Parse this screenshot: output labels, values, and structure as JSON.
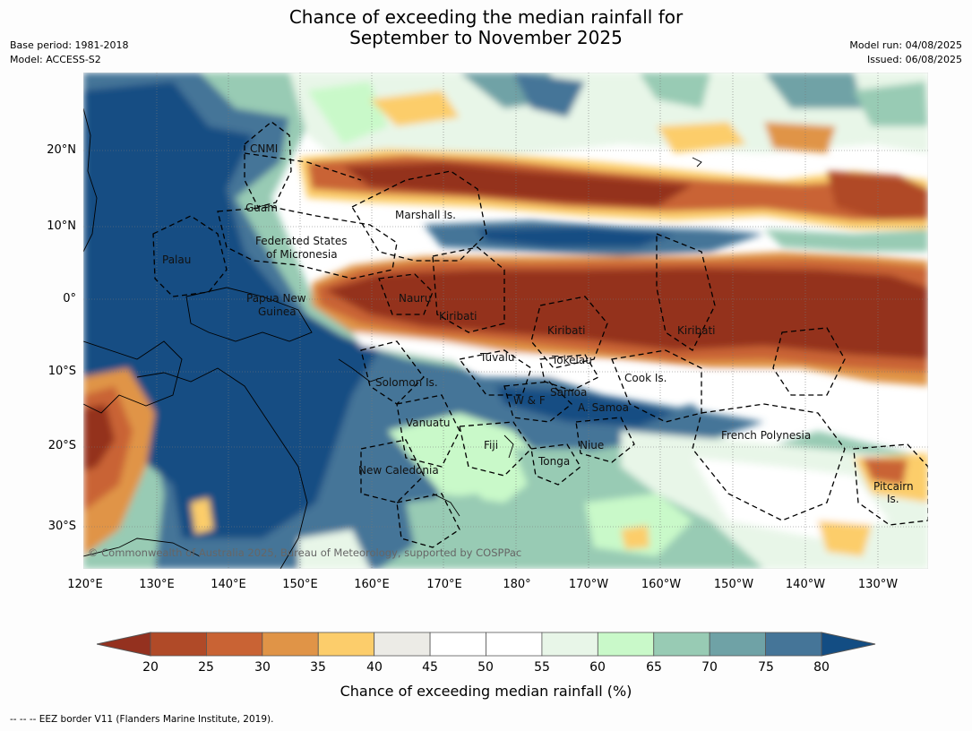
{
  "title_line1": "Chance of exceeding the median rainfall for",
  "title_line2": "September to November 2025",
  "meta_left": [
    "Base period: 1981-2018",
    "Model: ACCESS-S2"
  ],
  "meta_right": [
    "Model run: 04/08/2025",
    "Issued: 06/08/2025"
  ],
  "lat_labels": [
    "20°N",
    "10°N",
    "0°",
    "10°S",
    "20°S",
    "30°S"
  ],
  "lon_labels": [
    "120°E",
    "130°E",
    "140°E",
    "150°E",
    "160°E",
    "170°E",
    "180°",
    "170°W",
    "160°W",
    "150°W",
    "140°W",
    "130°W"
  ],
  "places": [
    "CNMI",
    "Guam",
    "Marshall Is.",
    "Federated States",
    "of Micronesia",
    "Palau",
    "Papua New",
    "Guinea",
    "Nauru",
    "Kiribati",
    "Kiribati",
    "Kiribati",
    "Tuvalu",
    "Tokelau",
    "Cook Is.",
    "Solomon Is.",
    "W & F",
    "Samoa",
    "A. Samoa",
    "Vanuatu",
    "Fiji",
    "Niue",
    "French Polynesia",
    "Tonga",
    "New Caledonia",
    "Pitcairn",
    "Is."
  ],
  "copyright": "© Commonwealth of Australia 2025, Bureau of Meteorology, supported by COSPPac",
  "colorbar": {
    "ticks": [
      "20",
      "25",
      "30",
      "35",
      "40",
      "45",
      "50",
      "55",
      "60",
      "65",
      "70",
      "75",
      "80"
    ],
    "label": "Chance of exceeding median rainfall (%)",
    "colors": [
      "#94311f",
      "#b04a28",
      "#c96334",
      "#e09447",
      "#fccd6b",
      "#ecebe6",
      "#ffffff",
      "#ffffff",
      "#e8f6e8",
      "#c9f9c9",
      "#98cbb4",
      "#6fa2a6",
      "#457598",
      "#134d83"
    ]
  },
  "footer": "--  --  -- EEZ border V11 (Flanders Marine Institute, 2019)."
}
